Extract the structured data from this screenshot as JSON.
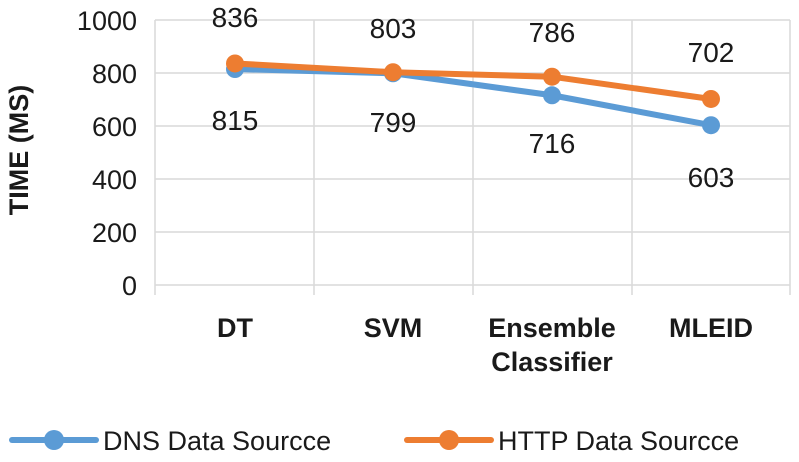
{
  "chart_data": {
    "type": "line",
    "categories": [
      [
        "DT"
      ],
      [
        "SVM"
      ],
      [
        "Ensemble",
        "Classifier"
      ],
      [
        "MLEID"
      ]
    ],
    "series": [
      {
        "name": "DNS Data Sourcce",
        "values": [
          815,
          799,
          716,
          603
        ],
        "labels": [
          "815",
          "799",
          "716",
          "603"
        ],
        "label_position": "below",
        "color": "#5b9bd5"
      },
      {
        "name": "HTTP Data Sourcce",
        "values": [
          836,
          803,
          786,
          702
        ],
        "labels": [
          "836",
          "803",
          "786",
          "702"
        ],
        "label_position": "above",
        "color": "#ed7d31"
      }
    ],
    "ylabel": "TIME (MS)",
    "xlabel": "",
    "ylim": [
      0,
      1000
    ],
    "yticks": [
      "0",
      "200",
      "400",
      "600",
      "800",
      "1000"
    ],
    "grid": true,
    "legend_position": "bottom"
  }
}
